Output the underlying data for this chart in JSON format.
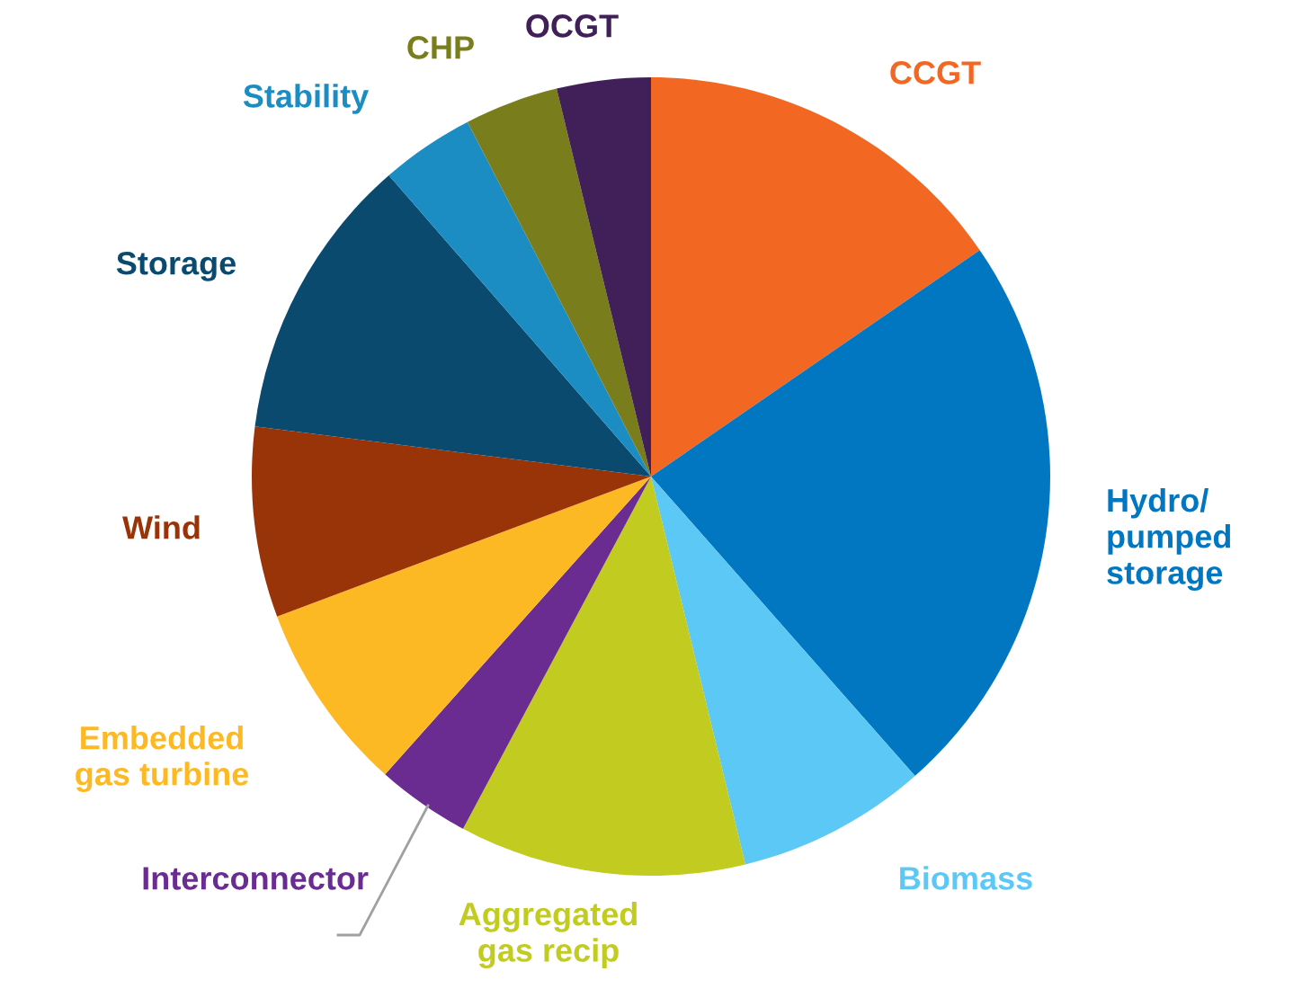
{
  "chart_data": {
    "type": "pie",
    "categories": [
      "CCGT",
      "Hydro/\npumped\nstorage",
      "Biomass",
      "Aggregated\ngas recip",
      "Interconnector",
      "Embedded\ngas turbine",
      "Wind",
      "Storage",
      "Stability",
      "CHP",
      "OCGT"
    ],
    "values": [
      15.4,
      23.1,
      7.7,
      11.6,
      3.8,
      7.7,
      7.7,
      11.6,
      3.8,
      3.8,
      3.8
    ],
    "colors": [
      "#f26722",
      "#0077c0",
      "#5bc8f5",
      "#c2cb20",
      "#6a2c91",
      "#fdb924",
      "#993409",
      "#0a4a6e",
      "#1b8dc2",
      "#7a7d1c",
      "#41205a"
    ],
    "legend": false
  }
}
